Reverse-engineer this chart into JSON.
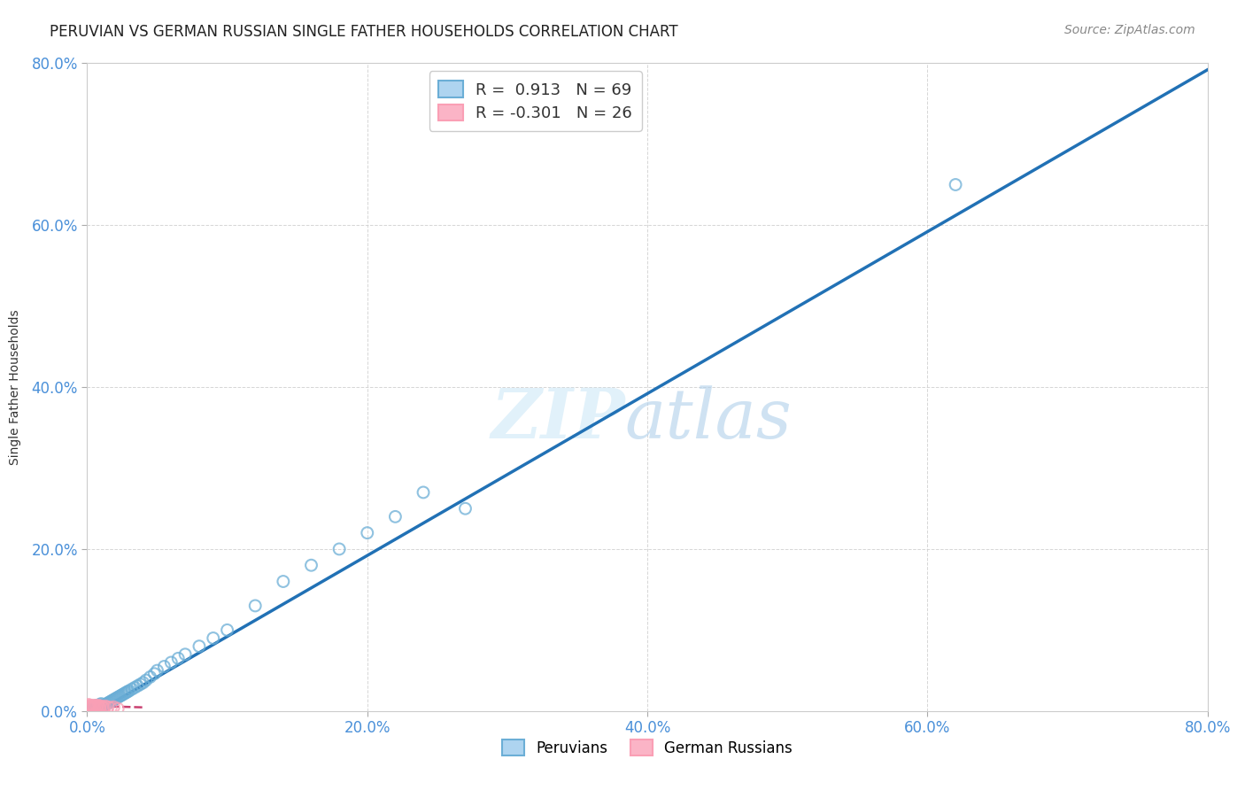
{
  "title": "PERUVIAN VS GERMAN RUSSIAN SINGLE FATHER HOUSEHOLDS CORRELATION CHART",
  "source": "Source: ZipAtlas.com",
  "ylabel": "Single Father Households",
  "legend_entries": [
    {
      "label": "R =  0.913   N = 69",
      "color": "#6baed6"
    },
    {
      "label": "R = -0.301   N = 26",
      "color": "#fa9fb5"
    }
  ],
  "peruvian_color": "#6baed6",
  "german_russian_color": "#fa9fb5",
  "trendline_peruvian_color": "#2171b5",
  "trendline_german_russian_color": "#c94070",
  "background_color": "#ffffff",
  "grid_color": "#cccccc",
  "peruvian_points_x": [
    0.001,
    0.001,
    0.002,
    0.002,
    0.002,
    0.003,
    0.003,
    0.003,
    0.004,
    0.004,
    0.004,
    0.005,
    0.005,
    0.005,
    0.006,
    0.006,
    0.007,
    0.007,
    0.008,
    0.008,
    0.009,
    0.009,
    0.01,
    0.01,
    0.011,
    0.012,
    0.013,
    0.014,
    0.015,
    0.016,
    0.017,
    0.018,
    0.019,
    0.02,
    0.021,
    0.022,
    0.023,
    0.024,
    0.025,
    0.026,
    0.027,
    0.028,
    0.029,
    0.03,
    0.032,
    0.034,
    0.036,
    0.038,
    0.04,
    0.042,
    0.045,
    0.048,
    0.05,
    0.055,
    0.06,
    0.065,
    0.07,
    0.08,
    0.09,
    0.1,
    0.12,
    0.14,
    0.16,
    0.18,
    0.2,
    0.22,
    0.24,
    0.62,
    0.27
  ],
  "peruvian_points_y": [
    0.001,
    0.002,
    0.001,
    0.002,
    0.003,
    0.002,
    0.003,
    0.004,
    0.002,
    0.003,
    0.005,
    0.002,
    0.004,
    0.006,
    0.003,
    0.005,
    0.004,
    0.007,
    0.003,
    0.005,
    0.004,
    0.008,
    0.005,
    0.009,
    0.006,
    0.007,
    0.008,
    0.009,
    0.01,
    0.011,
    0.012,
    0.013,
    0.014,
    0.015,
    0.016,
    0.017,
    0.018,
    0.019,
    0.02,
    0.021,
    0.022,
    0.023,
    0.024,
    0.025,
    0.027,
    0.029,
    0.031,
    0.033,
    0.035,
    0.038,
    0.042,
    0.046,
    0.05,
    0.055,
    0.06,
    0.065,
    0.07,
    0.08,
    0.09,
    0.1,
    0.13,
    0.16,
    0.18,
    0.2,
    0.22,
    0.24,
    0.27,
    0.65,
    0.25
  ],
  "german_russian_points_x": [
    0.001,
    0.001,
    0.002,
    0.002,
    0.003,
    0.003,
    0.004,
    0.004,
    0.005,
    0.005,
    0.006,
    0.006,
    0.007,
    0.007,
    0.008,
    0.008,
    0.009,
    0.009,
    0.01,
    0.011,
    0.012,
    0.013,
    0.015,
    0.017,
    0.019,
    0.022
  ],
  "german_russian_points_y": [
    0.006,
    0.008,
    0.005,
    0.007,
    0.006,
    0.004,
    0.005,
    0.007,
    0.004,
    0.006,
    0.005,
    0.007,
    0.004,
    0.006,
    0.005,
    0.007,
    0.004,
    0.005,
    0.006,
    0.005,
    0.004,
    0.006,
    0.005,
    0.004,
    0.005,
    0.003
  ],
  "xlim": [
    0.0,
    0.8
  ],
  "ylim": [
    0.0,
    0.8
  ],
  "xticks": [
    0.0,
    0.2,
    0.4,
    0.6,
    0.8
  ],
  "yticks": [
    0.0,
    0.2,
    0.4,
    0.6,
    0.8
  ],
  "tick_color": "#4a90d9",
  "tick_fontsize": 12,
  "title_fontsize": 12,
  "source_fontsize": 10,
  "ylabel_fontsize": 10
}
